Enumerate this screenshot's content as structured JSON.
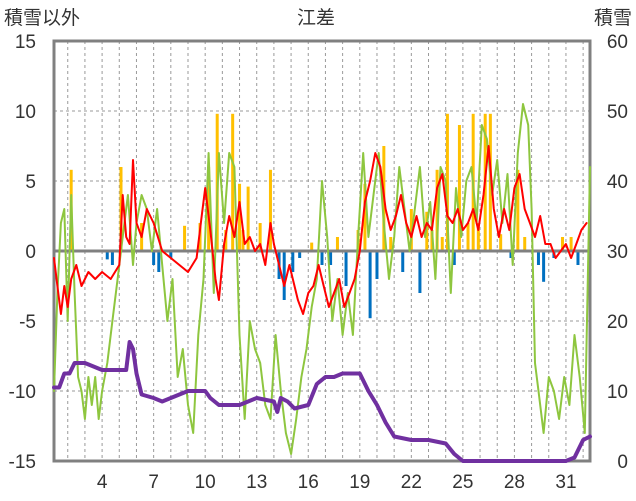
{
  "chart_data": {
    "type": "line",
    "title": "江差",
    "left_axis_label": "積雪以外",
    "right_axis_label": "積雪",
    "left_ylim": [
      -15,
      15
    ],
    "left_yticks": [
      15,
      10,
      5,
      0,
      -5,
      -10,
      -15
    ],
    "right_ylim": [
      0,
      60
    ],
    "right_yticks": [
      60,
      50,
      40,
      30,
      20,
      10,
      0
    ],
    "xlim": [
      1.2,
      32.4
    ],
    "xticks": [
      4,
      7,
      10,
      13,
      16,
      19,
      22,
      25,
      28,
      31
    ],
    "grid": {
      "vertical_dashed_every": 1,
      "horizontal_dashed": true
    },
    "colors": {
      "red": "#ff0000",
      "green": "#8ec63f",
      "purple": "#7030a0",
      "bar_pos": "#ffc000",
      "bar_neg": "#0070c0",
      "frame": "#808080",
      "zero_line": "#808080"
    },
    "bars": [
      [
        2.2,
        5.8
      ],
      [
        4.3,
        -0.6
      ],
      [
        4.6,
        -1.0
      ],
      [
        5.1,
        6.0
      ],
      [
        6.3,
        2.0
      ],
      [
        7.0,
        -1.0
      ],
      [
        7.3,
        -1.5
      ],
      [
        8.0,
        -0.5
      ],
      [
        8.8,
        1.8
      ],
      [
        9.7,
        2.0
      ],
      [
        10.2,
        6.0
      ],
      [
        10.7,
        9.8
      ],
      [
        11.2,
        1.5
      ],
      [
        11.6,
        9.8
      ],
      [
        12.0,
        4.8
      ],
      [
        12.2,
        1.5
      ],
      [
        12.5,
        4.6
      ],
      [
        13.2,
        2.0
      ],
      [
        13.8,
        5.8
      ],
      [
        14.3,
        -2.0
      ],
      [
        14.6,
        -3.5
      ],
      [
        15.1,
        -1.5
      ],
      [
        15.5,
        -0.5
      ],
      [
        16.2,
        0.6
      ],
      [
        16.8,
        -1.0
      ],
      [
        17.3,
        -1.0
      ],
      [
        17.7,
        1.0
      ],
      [
        18.2,
        -2.5
      ],
      [
        18.9,
        1.5
      ],
      [
        19.3,
        4.8
      ],
      [
        19.6,
        -4.8
      ],
      [
        20.0,
        -2.0
      ],
      [
        20.4,
        7.5
      ],
      [
        20.8,
        1.0
      ],
      [
        21.5,
        -1.5
      ],
      [
        22.0,
        3.0
      ],
      [
        22.5,
        -3.0
      ],
      [
        22.9,
        2.8
      ],
      [
        23.2,
        1.5
      ],
      [
        23.5,
        5.8
      ],
      [
        23.8,
        1.0
      ],
      [
        24.1,
        9.8
      ],
      [
        24.5,
        -1.0
      ],
      [
        24.8,
        9.0
      ],
      [
        25.3,
        2.0
      ],
      [
        25.6,
        9.8
      ],
      [
        25.9,
        2.0
      ],
      [
        26.3,
        9.8
      ],
      [
        26.6,
        9.8
      ],
      [
        27.2,
        1.2
      ],
      [
        27.8,
        -0.5
      ],
      [
        28.2,
        5.8
      ],
      [
        28.6,
        1.0
      ],
      [
        29.4,
        -1.0
      ],
      [
        29.7,
        -2.2
      ],
      [
        30.3,
        -0.5
      ],
      [
        30.8,
        1.0
      ],
      [
        31.3,
        1.0
      ],
      [
        31.7,
        -1.0
      ]
    ],
    "series": [
      {
        "axis": "left",
        "color": "red",
        "points": [
          [
            1.2,
            -0.5
          ],
          [
            1.4,
            -2.5
          ],
          [
            1.6,
            -4.5
          ],
          [
            1.8,
            -2.5
          ],
          [
            2.0,
            -4.0
          ],
          [
            2.2,
            -2.0
          ],
          [
            2.5,
            -1.0
          ],
          [
            2.8,
            -2.5
          ],
          [
            3.2,
            -1.5
          ],
          [
            3.6,
            -2.0
          ],
          [
            4.0,
            -1.5
          ],
          [
            4.5,
            -2.0
          ],
          [
            5.0,
            -1.0
          ],
          [
            5.2,
            4.0
          ],
          [
            5.4,
            1.0
          ],
          [
            5.6,
            0.5
          ],
          [
            5.8,
            6.5
          ],
          [
            6.0,
            2.0
          ],
          [
            6.3,
            1.0
          ],
          [
            6.6,
            3.0
          ],
          [
            7.0,
            2.0
          ],
          [
            7.5,
            0.0
          ],
          [
            8.0,
            -0.5
          ],
          [
            8.5,
            -1.0
          ],
          [
            9.0,
            -1.5
          ],
          [
            9.5,
            -0.5
          ],
          [
            9.8,
            2.5
          ],
          [
            10.0,
            4.5
          ],
          [
            10.3,
            1.5
          ],
          [
            10.6,
            -2.0
          ],
          [
            10.8,
            -3.5
          ],
          [
            11.1,
            0.5
          ],
          [
            11.4,
            2.5
          ],
          [
            11.7,
            1.0
          ],
          [
            12.0,
            3.5
          ],
          [
            12.3,
            0.5
          ],
          [
            12.6,
            1.0
          ],
          [
            12.9,
            0.0
          ],
          [
            13.2,
            0.5
          ],
          [
            13.5,
            -1.0
          ],
          [
            13.8,
            2.0
          ],
          [
            14.0,
            0.5
          ],
          [
            14.3,
            -1.0
          ],
          [
            14.6,
            -2.5
          ],
          [
            14.9,
            -1.0
          ],
          [
            15.1,
            -2.0
          ],
          [
            15.4,
            -3.5
          ],
          [
            15.7,
            -4.5
          ],
          [
            16.0,
            -3.0
          ],
          [
            16.3,
            -2.5
          ],
          [
            16.6,
            -1.0
          ],
          [
            16.9,
            -2.5
          ],
          [
            17.2,
            -4.0
          ],
          [
            17.5,
            -3.0
          ],
          [
            17.8,
            -2.0
          ],
          [
            18.1,
            -4.0
          ],
          [
            18.4,
            -3.0
          ],
          [
            18.7,
            -2.0
          ],
          [
            19.0,
            0.0
          ],
          [
            19.3,
            3.5
          ],
          [
            19.6,
            5.0
          ],
          [
            19.9,
            7.0
          ],
          [
            20.2,
            6.0
          ],
          [
            20.5,
            3.0
          ],
          [
            20.8,
            1.5
          ],
          [
            21.1,
            2.5
          ],
          [
            21.4,
            4.0
          ],
          [
            21.7,
            2.0
          ],
          [
            22.0,
            1.0
          ],
          [
            22.3,
            2.5
          ],
          [
            22.6,
            1.0
          ],
          [
            22.9,
            2.0
          ],
          [
            23.2,
            1.5
          ],
          [
            23.5,
            4.5
          ],
          [
            23.8,
            5.5
          ],
          [
            24.1,
            2.5
          ],
          [
            24.4,
            2.0
          ],
          [
            24.7,
            3.0
          ],
          [
            25.0,
            1.5
          ],
          [
            25.3,
            2.0
          ],
          [
            25.6,
            3.0
          ],
          [
            25.9,
            1.5
          ],
          [
            26.2,
            4.0
          ],
          [
            26.5,
            7.5
          ],
          [
            26.8,
            3.0
          ],
          [
            27.1,
            1.0
          ],
          [
            27.4,
            3.0
          ],
          [
            27.7,
            1.5
          ],
          [
            28.0,
            4.5
          ],
          [
            28.3,
            5.5
          ],
          [
            28.6,
            3.0
          ],
          [
            28.9,
            2.0
          ],
          [
            29.2,
            1.0
          ],
          [
            29.5,
            2.5
          ],
          [
            29.8,
            0.5
          ],
          [
            30.1,
            0.5
          ],
          [
            30.4,
            -0.5
          ],
          [
            30.7,
            0.0
          ],
          [
            31.0,
            0.5
          ],
          [
            31.3,
            -0.5
          ],
          [
            31.6,
            0.5
          ],
          [
            31.9,
            1.5
          ],
          [
            32.2,
            2.0
          ]
        ]
      },
      {
        "axis": "left",
        "color": "green",
        "points": [
          [
            1.2,
            -10.0
          ],
          [
            1.4,
            -3.0
          ],
          [
            1.6,
            2.0
          ],
          [
            1.8,
            3.0
          ],
          [
            2.0,
            -5.0
          ],
          [
            2.2,
            4.0
          ],
          [
            2.4,
            -3.0
          ],
          [
            2.6,
            -9.0
          ],
          [
            2.8,
            -10.0
          ],
          [
            3.0,
            -12.0
          ],
          [
            3.2,
            -9.0
          ],
          [
            3.4,
            -11.0
          ],
          [
            3.6,
            -9.0
          ],
          [
            3.8,
            -12.0
          ],
          [
            4.0,
            -10.0
          ],
          [
            4.3,
            -8.0
          ],
          [
            4.6,
            -5.0
          ],
          [
            4.9,
            -2.0
          ],
          [
            5.2,
            1.0
          ],
          [
            5.5,
            4.0
          ],
          [
            5.8,
            -1.0
          ],
          [
            6.0,
            2.0
          ],
          [
            6.3,
            4.0
          ],
          [
            6.6,
            3.0
          ],
          [
            6.9,
            0.0
          ],
          [
            7.2,
            3.0
          ],
          [
            7.5,
            -1.0
          ],
          [
            7.8,
            -5.0
          ],
          [
            8.1,
            -2.0
          ],
          [
            8.4,
            -9.0
          ],
          [
            8.7,
            -7.0
          ],
          [
            9.0,
            -11.0
          ],
          [
            9.3,
            -13.0
          ],
          [
            9.6,
            -6.0
          ],
          [
            9.9,
            -2.0
          ],
          [
            10.2,
            7.0
          ],
          [
            10.5,
            -3.0
          ],
          [
            10.8,
            7.0
          ],
          [
            11.1,
            2.0
          ],
          [
            11.4,
            7.0
          ],
          [
            11.7,
            6.0
          ],
          [
            12.0,
            -6.0
          ],
          [
            12.3,
            -12.0
          ],
          [
            12.6,
            -5.0
          ],
          [
            12.9,
            -7.0
          ],
          [
            13.2,
            -8.0
          ],
          [
            13.5,
            -11.0
          ],
          [
            13.8,
            -12.0
          ],
          [
            14.1,
            -6.0
          ],
          [
            14.4,
            -10.0
          ],
          [
            14.7,
            -13.0
          ],
          [
            15.0,
            -14.5
          ],
          [
            15.3,
            -12.0
          ],
          [
            15.6,
            -9.0
          ],
          [
            15.9,
            -7.0
          ],
          [
            16.2,
            -4.0
          ],
          [
            16.5,
            -2.0
          ],
          [
            16.8,
            5.0
          ],
          [
            17.1,
            1.0
          ],
          [
            17.4,
            -5.0
          ],
          [
            17.7,
            -2.0
          ],
          [
            18.0,
            -6.0
          ],
          [
            18.3,
            -3.0
          ],
          [
            18.6,
            -6.0
          ],
          [
            18.9,
            1.0
          ],
          [
            19.2,
            7.0
          ],
          [
            19.5,
            1.0
          ],
          [
            19.8,
            4.0
          ],
          [
            20.1,
            7.0
          ],
          [
            20.4,
            2.0
          ],
          [
            20.7,
            -2.0
          ],
          [
            21.0,
            1.0
          ],
          [
            21.3,
            6.0
          ],
          [
            21.6,
            3.0
          ],
          [
            21.9,
            0.0
          ],
          [
            22.2,
            3.0
          ],
          [
            22.5,
            6.0
          ],
          [
            22.8,
            1.0
          ],
          [
            23.1,
            3.5
          ],
          [
            23.4,
            -2.0
          ],
          [
            23.7,
            6.0
          ],
          [
            24.0,
            5.0
          ],
          [
            24.3,
            -3.0
          ],
          [
            24.6,
            4.5
          ],
          [
            24.9,
            1.0
          ],
          [
            25.2,
            5.0
          ],
          [
            25.5,
            6.0
          ],
          [
            25.8,
            2.0
          ],
          [
            26.1,
            9.0
          ],
          [
            26.4,
            8.0
          ],
          [
            26.7,
            4.0
          ],
          [
            27.0,
            6.5
          ],
          [
            27.3,
            2.0
          ],
          [
            27.6,
            5.5
          ],
          [
            27.9,
            -1.0
          ],
          [
            28.2,
            7.0
          ],
          [
            28.5,
            10.5
          ],
          [
            28.8,
            9.0
          ],
          [
            29.0,
            3.0
          ],
          [
            29.2,
            -8.0
          ],
          [
            29.4,
            -10.0
          ],
          [
            29.7,
            -13.0
          ],
          [
            30.0,
            -9.0
          ],
          [
            30.3,
            -10.0
          ],
          [
            30.6,
            -12.0
          ],
          [
            30.9,
            -9.0
          ],
          [
            31.2,
            -11.0
          ],
          [
            31.5,
            -6.0
          ],
          [
            31.8,
            -9.0
          ],
          [
            32.1,
            -13.0
          ],
          [
            32.4,
            6.0
          ]
        ]
      },
      {
        "axis": "right",
        "color": "purple",
        "points": [
          [
            1.2,
            10.5
          ],
          [
            1.5,
            10.5
          ],
          [
            1.8,
            12.5
          ],
          [
            2.1,
            12.5
          ],
          [
            2.4,
            14.0
          ],
          [
            3.0,
            14.0
          ],
          [
            3.5,
            13.5
          ],
          [
            4.0,
            13.0
          ],
          [
            5.0,
            13.0
          ],
          [
            5.4,
            13.0
          ],
          [
            5.6,
            17.0
          ],
          [
            5.8,
            16.0
          ],
          [
            6.0,
            12.5
          ],
          [
            6.3,
            9.5
          ],
          [
            7.0,
            9.0
          ],
          [
            7.5,
            8.5
          ],
          [
            8.0,
            9.0
          ],
          [
            8.5,
            9.5
          ],
          [
            9.0,
            10.0
          ],
          [
            10.0,
            10.0
          ],
          [
            10.3,
            9.0
          ],
          [
            10.8,
            8.0
          ],
          [
            12.0,
            8.0
          ],
          [
            12.5,
            8.5
          ],
          [
            13.0,
            9.0
          ],
          [
            14.0,
            8.5
          ],
          [
            14.2,
            7.0
          ],
          [
            14.4,
            9.0
          ],
          [
            14.8,
            8.5
          ],
          [
            15.2,
            7.5
          ],
          [
            16.0,
            8.0
          ],
          [
            16.5,
            11.0
          ],
          [
            17.0,
            12.0
          ],
          [
            17.5,
            12.0
          ],
          [
            18.0,
            12.5
          ],
          [
            19.0,
            12.5
          ],
          [
            19.5,
            10.0
          ],
          [
            20.0,
            8.0
          ],
          [
            20.5,
            5.5
          ],
          [
            21.0,
            3.5
          ],
          [
            22.0,
            3.0
          ],
          [
            23.0,
            3.0
          ],
          [
            24.0,
            2.5
          ],
          [
            24.5,
            1.0
          ],
          [
            25.0,
            0.0
          ],
          [
            31.0,
            0.0
          ],
          [
            31.5,
            0.5
          ],
          [
            32.0,
            3.0
          ],
          [
            32.4,
            3.5
          ]
        ]
      }
    ]
  }
}
